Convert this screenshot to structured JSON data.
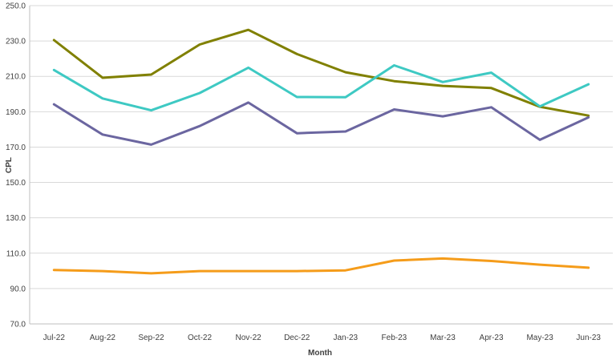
{
  "chart_data": {
    "type": "line",
    "title": "",
    "xlabel": "Month",
    "ylabel": "CPL",
    "categories": [
      "Jul-22",
      "Aug-22",
      "Sep-22",
      "Oct-22",
      "Nov-22",
      "Dec-22",
      "Jan-23",
      "Feb-23",
      "Mar-23",
      "Apr-23",
      "May-23",
      "Jun-23"
    ],
    "ylim": [
      70.0,
      250.0
    ],
    "ytick_step": 20,
    "yticks": [
      "70.0",
      "90.0",
      "110.0",
      "130.0",
      "150.0",
      "170.0",
      "190.0",
      "210.0",
      "230.0",
      "250.0"
    ],
    "grid": true,
    "legend": "none",
    "series": [
      {
        "color": "#808000",
        "values": [
          230.5,
          209.2,
          211.0,
          228.0,
          236.3,
          222.6,
          212.3,
          207.3,
          204.6,
          203.4,
          192.8,
          187.8
        ]
      },
      {
        "color": "#3ec9c3",
        "values": [
          213.6,
          197.5,
          190.8,
          200.6,
          214.9,
          198.3,
          198.2,
          216.2,
          206.8,
          212.1,
          193.0,
          205.5
        ]
      },
      {
        "color": "#6b66a0",
        "values": [
          194.2,
          177.1,
          171.4,
          181.9,
          195.2,
          177.8,
          178.8,
          191.3,
          187.4,
          192.5,
          174.1,
          186.8
        ]
      },
      {
        "color": "#f59c1a",
        "values": [
          100.5,
          99.9,
          98.6,
          99.9,
          99.9,
          99.9,
          100.3,
          105.8,
          107.0,
          105.6,
          103.5,
          101.8
        ]
      }
    ]
  }
}
